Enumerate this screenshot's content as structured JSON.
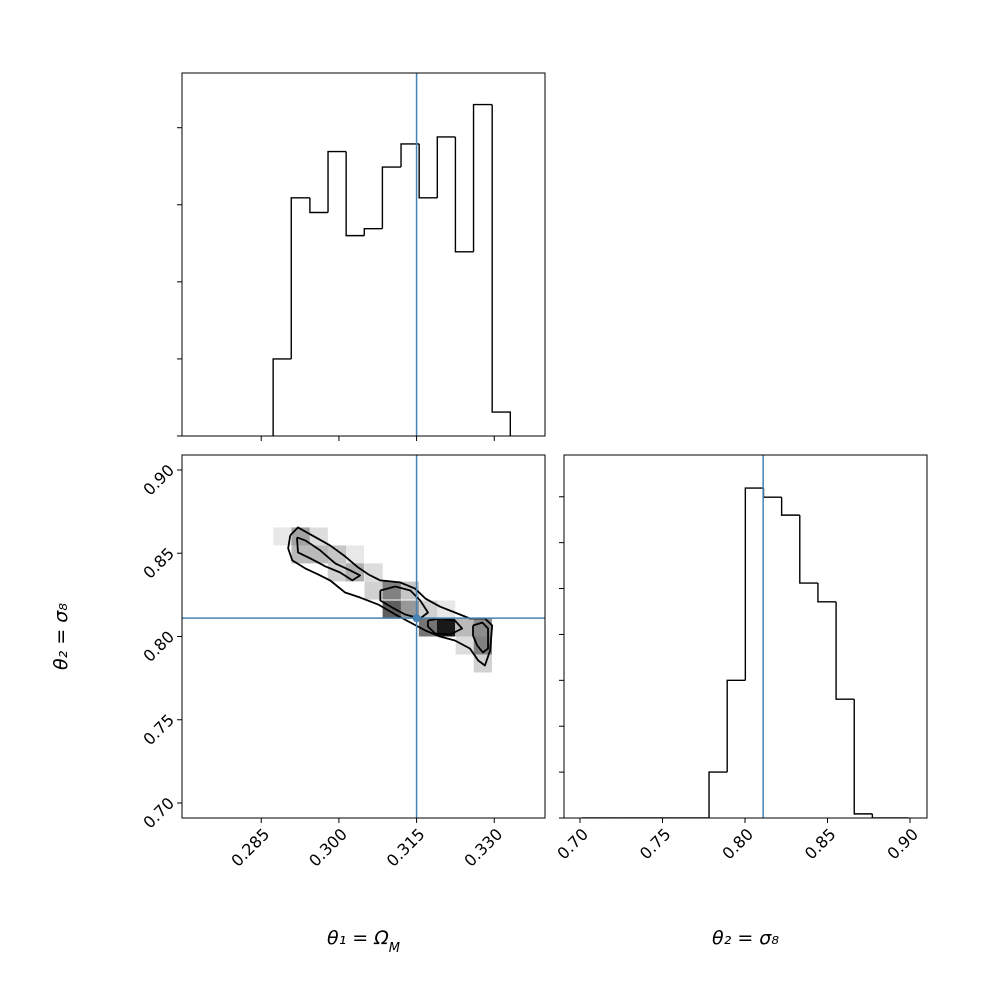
{
  "chart_data": [
    {
      "type": "histogram",
      "color": "#000000",
      "truth_color": "#4682b4",
      "tick_labels": false,
      "bins": [
        0.2873,
        0.2908,
        0.2944,
        0.2979,
        0.3014,
        0.3049,
        0.3084,
        0.312,
        0.3155,
        0.319,
        0.3225,
        0.326,
        0.3296,
        0.3331
      ],
      "values": [
        1.0,
        3.09,
        2.9,
        3.69,
        2.6,
        2.69,
        3.49,
        3.79,
        3.09,
        3.88,
        2.39,
        4.3,
        0.31
      ],
      "truth": 0.315,
      "xlim": [
        0.2697,
        0.3398
      ],
      "ylim": [
        0,
        4.71
      ],
      "xticks": [
        0.285,
        0.3,
        0.315,
        0.33
      ],
      "yticks": [
        0,
        1,
        2,
        3,
        4
      ]
    },
    {
      "type": "hist2d",
      "color": "#000000",
      "truth_color": "#4682b4",
      "tick_labels": true,
      "xlabel": {
        "text": "θ₁ = Ω",
        "sub": "M"
      },
      "ylabel": "θ₂ = σ₈",
      "xlim": [
        0.2697,
        0.3398
      ],
      "ylim": [
        0.691,
        0.909
      ],
      "xticks": [
        0.285,
        {
          "value": 0.3,
          "label": "0.300"
        },
        0.315,
        {
          "value": 0.33,
          "label": "0.330"
        }
      ],
      "yticks": [
        {
          "value": 0.7,
          "label": "0.70"
        },
        0.75,
        {
          "value": 0.8,
          "label": "0.80"
        },
        0.85,
        {
          "value": 0.9,
          "label": "0.90"
        }
      ],
      "truths": [
        0.315,
        0.811
      ],
      "cell_width": 0.00352,
      "cell_height": 0.0108,
      "cells": [
        {
          "x": 0.2926,
          "y": 0.8601,
          "density": 0.4
        },
        {
          "x": 0.2891,
          "y": 0.8601,
          "density": 0.1
        },
        {
          "x": 0.2961,
          "y": 0.8601,
          "density": 0.15
        },
        {
          "x": 0.2926,
          "y": 0.8493,
          "density": 0.3
        },
        {
          "x": 0.2961,
          "y": 0.8493,
          "density": 0.3
        },
        {
          "x": 0.2996,
          "y": 0.8493,
          "density": 0.25
        },
        {
          "x": 0.3031,
          "y": 0.8493,
          "density": 0.1
        },
        {
          "x": 0.2996,
          "y": 0.8385,
          "density": 0.2
        },
        {
          "x": 0.3031,
          "y": 0.8385,
          "density": 0.35
        },
        {
          "x": 0.3067,
          "y": 0.8385,
          "density": 0.15
        },
        {
          "x": 0.3067,
          "y": 0.8276,
          "density": 0.2
        },
        {
          "x": 0.3102,
          "y": 0.8276,
          "density": 0.55
        },
        {
          "x": 0.3137,
          "y": 0.8276,
          "density": 0.25
        },
        {
          "x": 0.3102,
          "y": 0.8162,
          "density": 0.7
        },
        {
          "x": 0.3137,
          "y": 0.8162,
          "density": 0.45
        },
        {
          "x": 0.3172,
          "y": 0.8162,
          "density": 0.2
        },
        {
          "x": 0.3207,
          "y": 0.8162,
          "density": 0.1
        },
        {
          "x": 0.3172,
          "y": 0.8054,
          "density": 0.6
        },
        {
          "x": 0.3207,
          "y": 0.8054,
          "density": 1.0
        },
        {
          "x": 0.3243,
          "y": 0.8054,
          "density": 0.3
        },
        {
          "x": 0.3278,
          "y": 0.8054,
          "density": 0.5
        },
        {
          "x": 0.3243,
          "y": 0.7946,
          "density": 0.15
        },
        {
          "x": 0.3278,
          "y": 0.7946,
          "density": 0.55
        },
        {
          "x": 0.3278,
          "y": 0.7838,
          "density": 0.2
        }
      ],
      "contours": [
        {
          "x": [
            0.2906,
            0.2921,
            0.2945,
            0.2983,
            0.3012,
            0.3037,
            0.3057,
            0.308,
            0.3118,
            0.3147,
            0.3167,
            0.3195,
            0.3224,
            0.3253,
            0.3282,
            0.3296,
            0.3292,
            0.3282,
            0.3269,
            0.3253,
            0.3224,
            0.3195,
            0.3167,
            0.3138,
            0.3109,
            0.3076,
            0.3041,
            0.3012,
            0.2983,
            0.296,
            0.2935,
            0.291,
            0.2902,
            0.2906
          ],
          "y": [
            0.8607,
            0.8655,
            0.8613,
            0.8547,
            0.8481,
            0.8415,
            0.8373,
            0.8337,
            0.8325,
            0.8288,
            0.8228,
            0.818,
            0.8144,
            0.8108,
            0.8108,
            0.8066,
            0.7916,
            0.7826,
            0.7856,
            0.7928,
            0.7976,
            0.8,
            0.8036,
            0.8084,
            0.8132,
            0.8192,
            0.8234,
            0.8264,
            0.8337,
            0.8373,
            0.8409,
            0.8457,
            0.8529,
            0.8607
          ]
        },
        {
          "x": [
            0.2919,
            0.2935,
            0.2964,
            0.2993,
            0.3022,
            0.3041,
            0.3026,
            0.3002,
            0.2974,
            0.2945,
            0.2921,
            0.2919
          ],
          "y": [
            0.8595,
            0.8577,
            0.8517,
            0.8439,
            0.8397,
            0.8367,
            0.8337,
            0.8385,
            0.8421,
            0.8469,
            0.8505,
            0.8595
          ]
        },
        {
          "x": [
            0.308,
            0.3109,
            0.3138,
            0.3157,
            0.3172,
            0.3157,
            0.3128,
            0.3103,
            0.308,
            0.308
          ],
          "y": [
            0.8276,
            0.83,
            0.8276,
            0.8216,
            0.8144,
            0.8108,
            0.8132,
            0.8174,
            0.8216,
            0.8276
          ]
        },
        {
          "x": [
            0.3172,
            0.3195,
            0.3224,
            0.3238,
            0.3215,
            0.3186,
            0.3172,
            0.3172
          ],
          "y": [
            0.8096,
            0.8108,
            0.8096,
            0.8048,
            0.8012,
            0.8018,
            0.806,
            0.8096
          ]
        },
        {
          "x": [
            0.3259,
            0.3277,
            0.3288,
            0.3288,
            0.3278,
            0.3267,
            0.3259,
            0.3259
          ],
          "y": [
            0.8066,
            0.8084,
            0.8048,
            0.7928,
            0.7904,
            0.7946,
            0.8006,
            0.8066
          ]
        }
      ]
    },
    {
      "type": "histogram",
      "color": "#000000",
      "truth_color": "#4682b4",
      "tick_labels": true,
      "xlabel": "θ₂ = σ₈",
      "bins": [
        0.7012,
        0.7122,
        0.7232,
        0.7342,
        0.7452,
        0.7562,
        0.7672,
        0.7782,
        0.7892,
        0.8002,
        0.8112,
        0.8222,
        0.8332,
        0.8442,
        0.8552,
        0.8662,
        0.8772,
        0.8882,
        0.8992
      ],
      "values": [
        0,
        0,
        0,
        0,
        0,
        0,
        0,
        1.0,
        3.0,
        7.19,
        6.99,
        6.6,
        5.12,
        4.71,
        2.59,
        0.09,
        0,
        0
      ],
      "truth": 0.811,
      "xlim": [
        0.6903,
        0.9103
      ],
      "ylim": [
        0,
        7.91
      ],
      "xticks": [
        {
          "value": 0.7,
          "label": "0.70"
        },
        0.75,
        {
          "value": 0.8,
          "label": "0.80"
        },
        0.85,
        {
          "value": 0.9,
          "label": "0.90"
        }
      ],
      "yticks": [
        0,
        1,
        2,
        3,
        4,
        5,
        6,
        7
      ],
      "y_tick_labels": false
    }
  ]
}
